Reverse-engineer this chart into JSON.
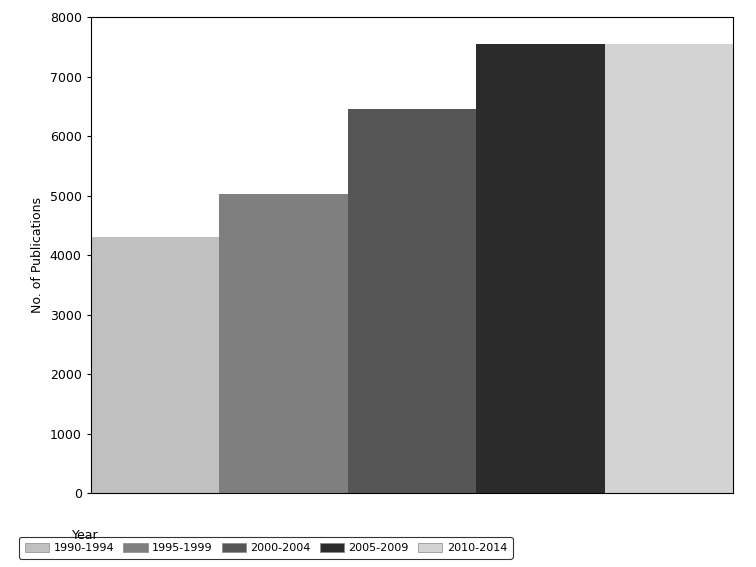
{
  "categories": [
    "1990-1994",
    "1995-1999",
    "2000-2004",
    "2005-2009",
    "2010-2014"
  ],
  "values": [
    4300,
    5020,
    6450,
    7550,
    7550
  ],
  "bar_colors": [
    "#c0c0c0",
    "#7f7f7f",
    "#565656",
    "#2b2b2b",
    "#d3d3d3"
  ],
  "ylabel": "No. of Publications",
  "ylim": [
    0,
    8000
  ],
  "yticks": [
    0,
    1000,
    2000,
    3000,
    4000,
    5000,
    6000,
    7000,
    8000
  ],
  "legend_label": "Year",
  "background_color": "#ffffff"
}
